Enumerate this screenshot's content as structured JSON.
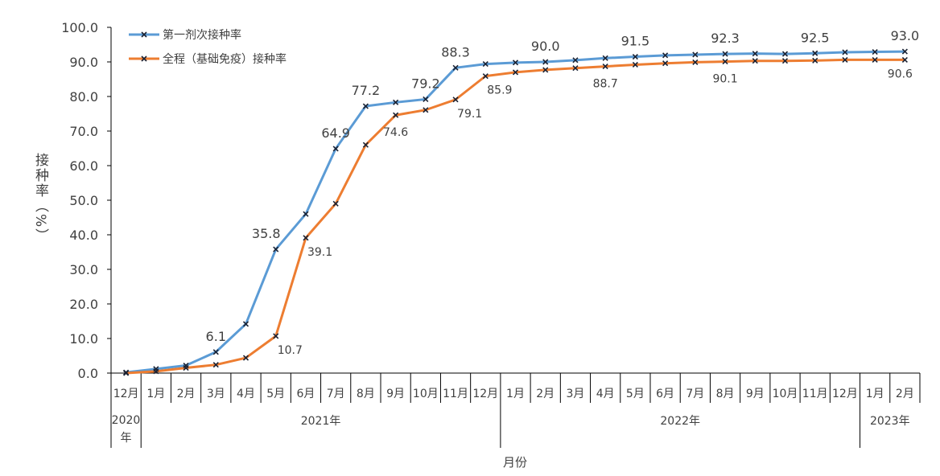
{
  "chart_data": {
    "type": "line",
    "title": "",
    "ylabel": "接种率（%）",
    "xlabel": "月份",
    "ylim": [
      0,
      100
    ],
    "yticks": [
      "0.0",
      "10.0",
      "20.0",
      "30.0",
      "40.0",
      "50.0",
      "60.0",
      "70.0",
      "80.0",
      "90.0",
      "100.0"
    ],
    "grid": false,
    "legend_position": "top-left",
    "categories": [
      "12月",
      "1月",
      "2月",
      "3月",
      "4月",
      "5月",
      "6月",
      "7月",
      "8月",
      "9月",
      "10月",
      "11月",
      "12月",
      "1月",
      "2月",
      "3月",
      "4月",
      "5月",
      "6月",
      "7月",
      "8月",
      "9月",
      "10月",
      "11月",
      "12月",
      "1月",
      "2月"
    ],
    "year_groups": [
      {
        "label": "2020年",
        "span": 1
      },
      {
        "label": "2021年",
        "span": 12
      },
      {
        "label": "2022年",
        "span": 12
      },
      {
        "label": "2023年",
        "span": 2
      }
    ],
    "series": [
      {
        "name": "第一剂次接种率",
        "color": "#5b9bd5",
        "values": [
          0.2,
          1.2,
          2.2,
          6.1,
          14.2,
          35.8,
          46.0,
          64.9,
          77.2,
          78.3,
          79.2,
          88.3,
          89.4,
          89.8,
          90.0,
          90.5,
          91.1,
          91.5,
          91.9,
          92.1,
          92.3,
          92.4,
          92.3,
          92.5,
          92.8,
          92.9,
          93.0
        ],
        "labels": [
          null,
          null,
          null,
          "6.1",
          null,
          "35.8",
          null,
          "64.9",
          "77.2",
          null,
          "79.2",
          "88.3",
          null,
          null,
          "90.0",
          null,
          null,
          "91.5",
          null,
          null,
          "92.3",
          null,
          null,
          "92.5",
          null,
          null,
          "93.0"
        ]
      },
      {
        "name": "全程（基础免疫）接种率",
        "color": "#ed7d31",
        "values": [
          0.0,
          0.5,
          1.5,
          2.4,
          4.4,
          10.7,
          39.1,
          49.0,
          66.0,
          74.6,
          76.1,
          79.1,
          85.9,
          87.0,
          87.7,
          88.2,
          88.7,
          89.2,
          89.6,
          89.9,
          90.1,
          90.3,
          90.3,
          90.4,
          90.6,
          90.6,
          90.6
        ],
        "labels": [
          null,
          null,
          null,
          null,
          null,
          "10.7",
          "39.1",
          null,
          null,
          "74.6",
          null,
          "79.1",
          "85.9",
          null,
          null,
          null,
          "88.7",
          null,
          null,
          null,
          "90.1",
          null,
          null,
          null,
          null,
          null,
          "90.6"
        ]
      }
    ]
  }
}
